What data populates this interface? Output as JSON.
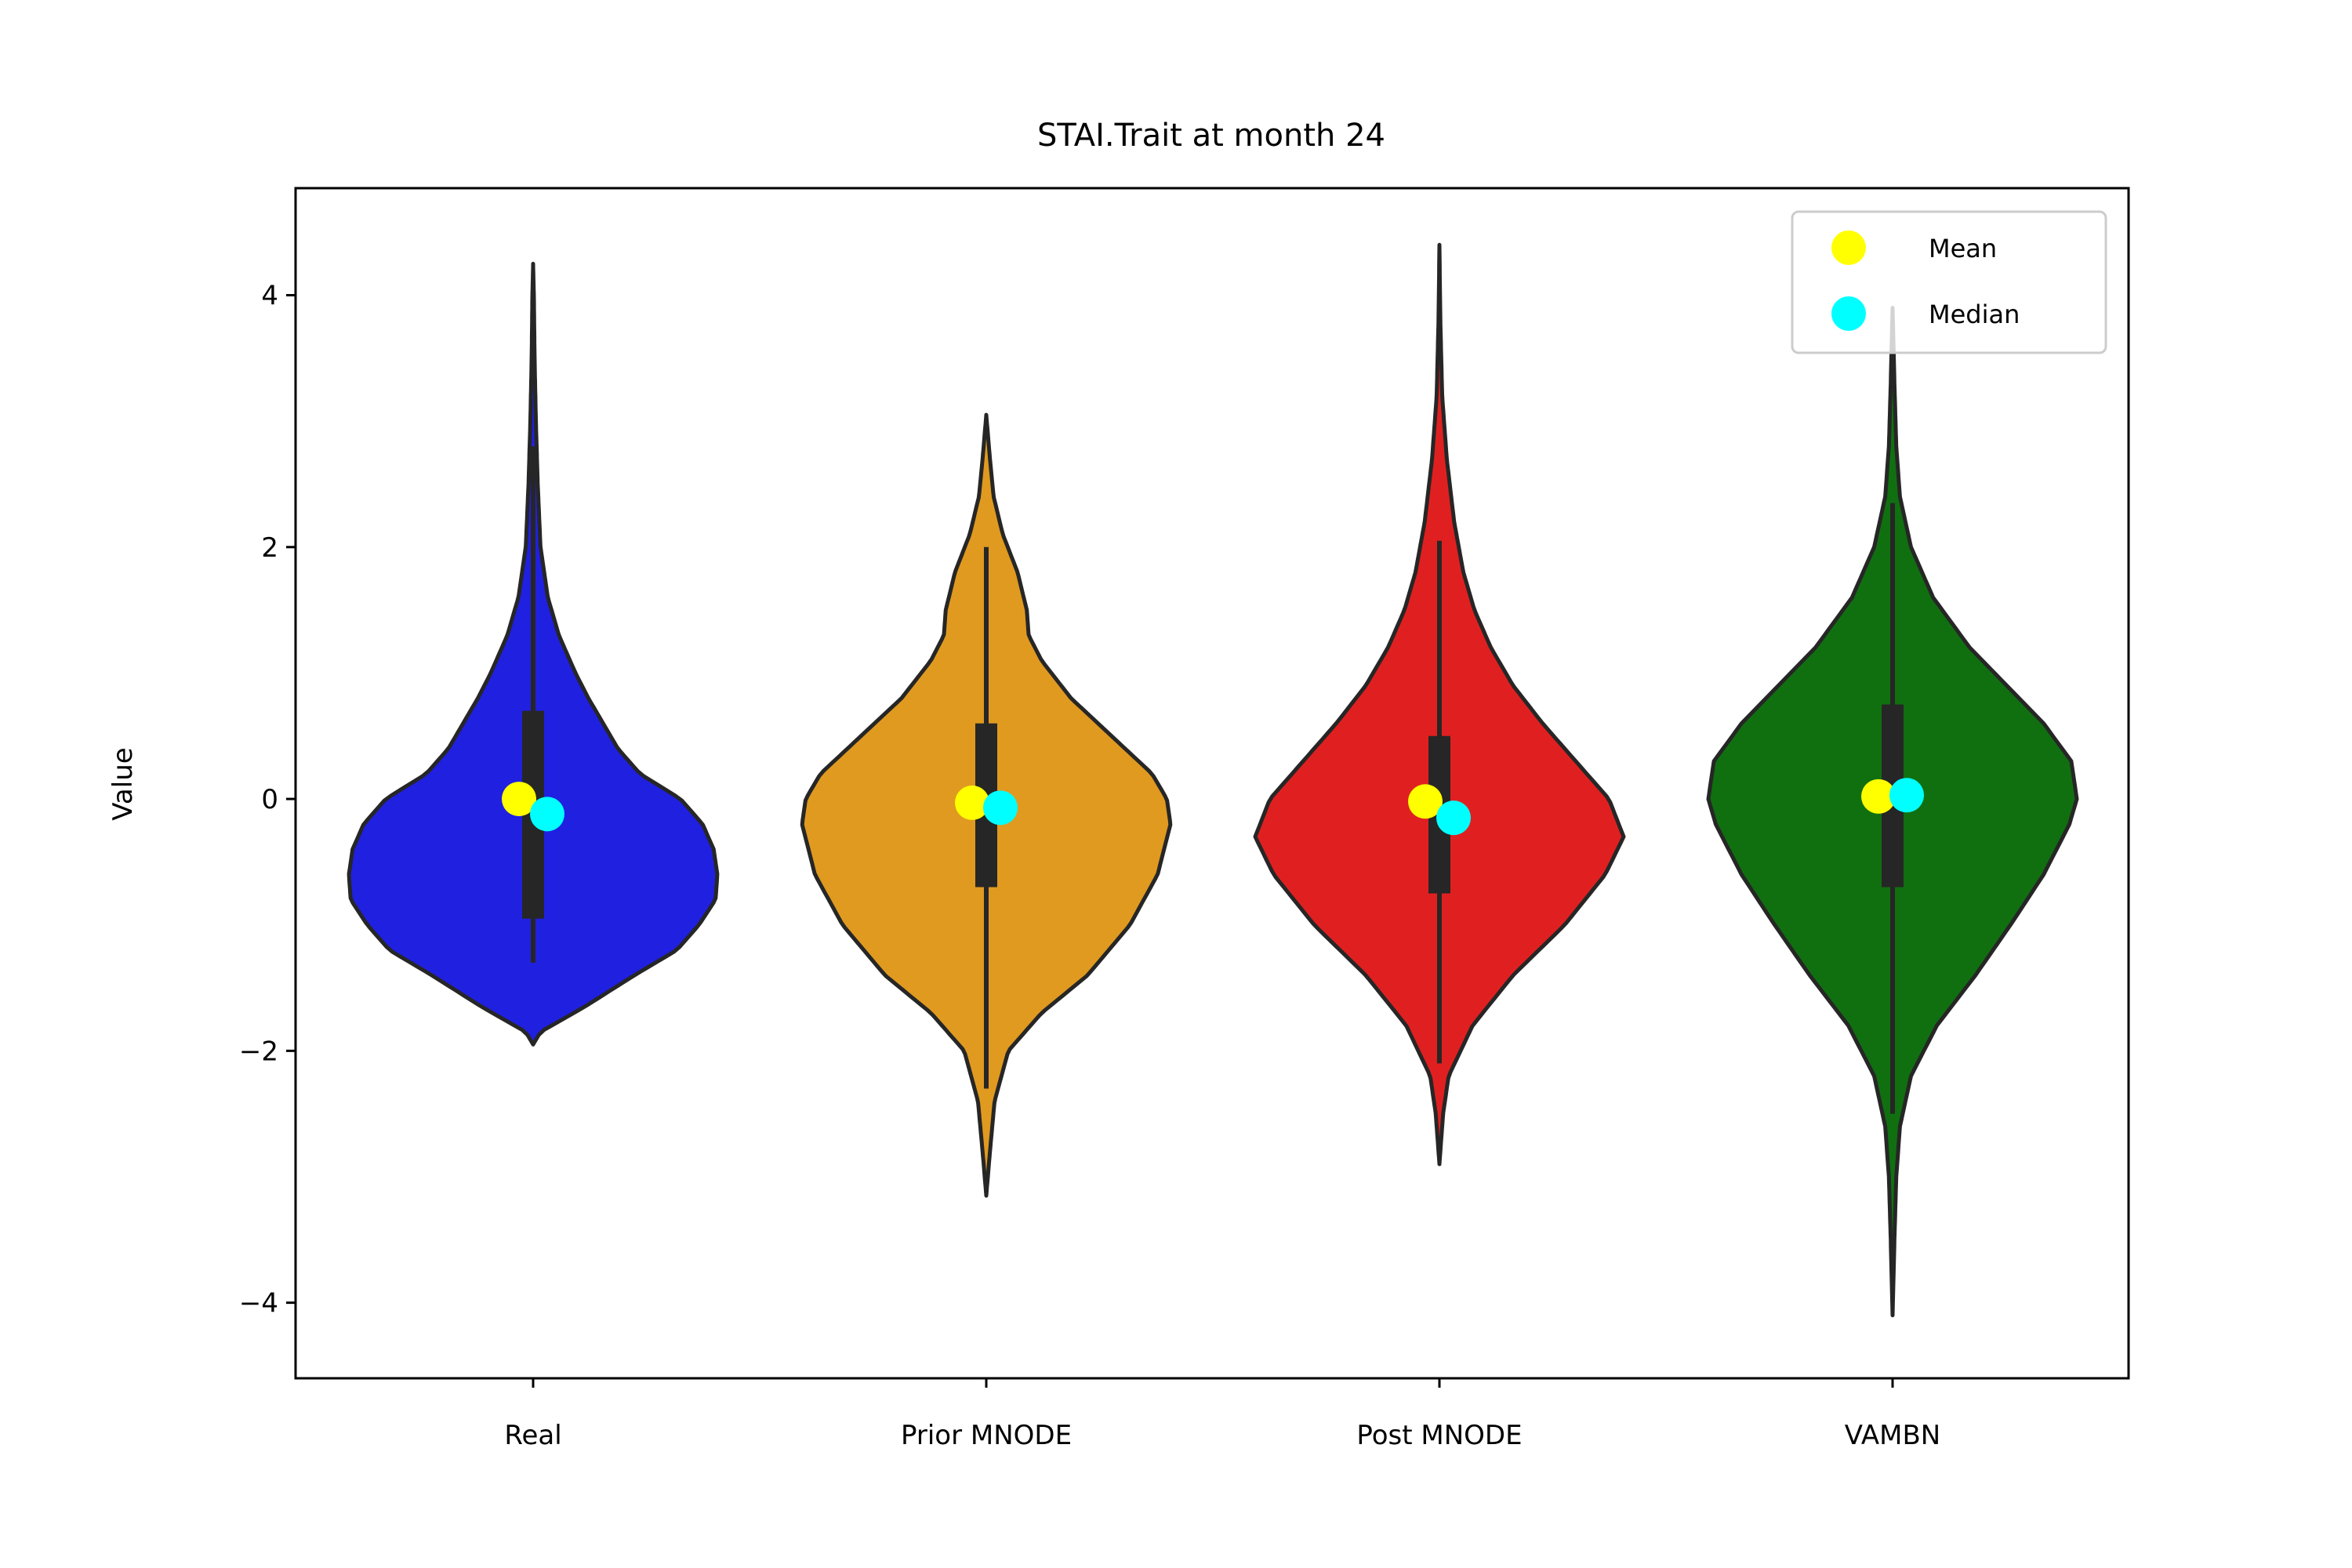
{
  "chart_data": {
    "type": "violin",
    "title": "STAI.Trait at month 24",
    "xlabel": "",
    "ylabel": "Value",
    "ylim": [
      -4.6,
      4.85
    ],
    "yticks": [
      {
        "value": -4,
        "label": "−4"
      },
      {
        "value": -2,
        "label": "−2"
      },
      {
        "value": 0,
        "label": "0"
      },
      {
        "value": 2,
        "label": "2"
      },
      {
        "value": 4,
        "label": "4"
      }
    ],
    "categories": [
      "Real",
      "Prior MNODE",
      "Post MNODE",
      "VAMBN"
    ],
    "grid": false,
    "legend": {
      "placement": "top-right",
      "entries": [
        {
          "label": "Mean",
          "color": "#ffff00"
        },
        {
          "label": "Median",
          "color": "#00ffff"
        }
      ]
    },
    "series": [
      {
        "category": "Real",
        "color": "#2020e0",
        "min": -1.3,
        "q1": -0.95,
        "q3": 0.7,
        "max": 2.8,
        "kde_min": -1.95,
        "kde_max": 4.25,
        "mean": 0.0,
        "median": -0.12,
        "density": [
          [
            -1.95,
            0.0
          ],
          [
            -1.85,
            0.04
          ],
          [
            -1.65,
            0.28
          ],
          [
            -1.4,
            0.55
          ],
          [
            -1.2,
            0.78
          ],
          [
            -1.0,
            0.9
          ],
          [
            -0.8,
            0.99
          ],
          [
            -0.6,
            1.0
          ],
          [
            -0.4,
            0.98
          ],
          [
            -0.2,
            0.92
          ],
          [
            0.0,
            0.8
          ],
          [
            0.2,
            0.58
          ],
          [
            0.4,
            0.46
          ],
          [
            0.6,
            0.38
          ],
          [
            0.8,
            0.3
          ],
          [
            1.0,
            0.23
          ],
          [
            1.3,
            0.14
          ],
          [
            1.6,
            0.08
          ],
          [
            2.0,
            0.04
          ],
          [
            2.5,
            0.025
          ],
          [
            3.0,
            0.015
          ],
          [
            3.5,
            0.008
          ],
          [
            4.0,
            0.004
          ],
          [
            4.25,
            0.0
          ]
        ]
      },
      {
        "category": "Prior MNODE",
        "color": "#e09a20",
        "min": -2.3,
        "q1": -0.7,
        "q3": 0.6,
        "max": 2.0,
        "kde_min": -3.15,
        "kde_max": 3.05,
        "mean": -0.03,
        "median": -0.07,
        "density": [
          [
            -3.15,
            0.0
          ],
          [
            -2.8,
            0.02
          ],
          [
            -2.4,
            0.045
          ],
          [
            -2.0,
            0.12
          ],
          [
            -1.7,
            0.3
          ],
          [
            -1.4,
            0.55
          ],
          [
            -1.0,
            0.78
          ],
          [
            -0.6,
            0.93
          ],
          [
            -0.2,
            1.0
          ],
          [
            0.0,
            0.98
          ],
          [
            0.2,
            0.9
          ],
          [
            0.5,
            0.68
          ],
          [
            0.8,
            0.46
          ],
          [
            1.1,
            0.3
          ],
          [
            1.3,
            0.23
          ],
          [
            1.5,
            0.22
          ],
          [
            1.8,
            0.17
          ],
          [
            2.1,
            0.09
          ],
          [
            2.4,
            0.04
          ],
          [
            2.7,
            0.02
          ],
          [
            3.05,
            0.0
          ]
        ]
      },
      {
        "category": "Post MNODE",
        "color": "#e02020",
        "min": -2.1,
        "q1": -0.75,
        "q3": 0.5,
        "max": 2.05,
        "kde_min": -2.9,
        "kde_max": 4.4,
        "mean": -0.02,
        "median": -0.15,
        "density": [
          [
            -2.9,
            0.0
          ],
          [
            -2.5,
            0.02
          ],
          [
            -2.2,
            0.05
          ],
          [
            -1.8,
            0.18
          ],
          [
            -1.4,
            0.4
          ],
          [
            -1.0,
            0.68
          ],
          [
            -0.6,
            0.9
          ],
          [
            -0.3,
            1.0
          ],
          [
            0.0,
            0.92
          ],
          [
            0.3,
            0.74
          ],
          [
            0.6,
            0.56
          ],
          [
            0.9,
            0.4
          ],
          [
            1.2,
            0.28
          ],
          [
            1.5,
            0.19
          ],
          [
            1.8,
            0.13
          ],
          [
            2.2,
            0.08
          ],
          [
            2.7,
            0.04
          ],
          [
            3.2,
            0.015
          ],
          [
            3.8,
            0.005
          ],
          [
            4.4,
            0.0
          ]
        ]
      },
      {
        "category": "VAMBN",
        "color": "#107010",
        "min": -2.5,
        "q1": -0.7,
        "q3": 0.75,
        "max": 2.35,
        "kde_min": -4.1,
        "kde_max": 3.9,
        "mean": 0.02,
        "median": 0.03,
        "density": [
          [
            -4.1,
            0.0
          ],
          [
            -3.5,
            0.01
          ],
          [
            -3.0,
            0.02
          ],
          [
            -2.6,
            0.04
          ],
          [
            -2.2,
            0.1
          ],
          [
            -1.8,
            0.24
          ],
          [
            -1.4,
            0.45
          ],
          [
            -1.0,
            0.64
          ],
          [
            -0.6,
            0.82
          ],
          [
            -0.2,
            0.96
          ],
          [
            0.0,
            1.0
          ],
          [
            0.3,
            0.97
          ],
          [
            0.6,
            0.82
          ],
          [
            0.9,
            0.62
          ],
          [
            1.2,
            0.42
          ],
          [
            1.6,
            0.22
          ],
          [
            2.0,
            0.1
          ],
          [
            2.4,
            0.04
          ],
          [
            2.8,
            0.02
          ],
          [
            3.3,
            0.01
          ],
          [
            3.9,
            0.0
          ]
        ]
      }
    ]
  }
}
